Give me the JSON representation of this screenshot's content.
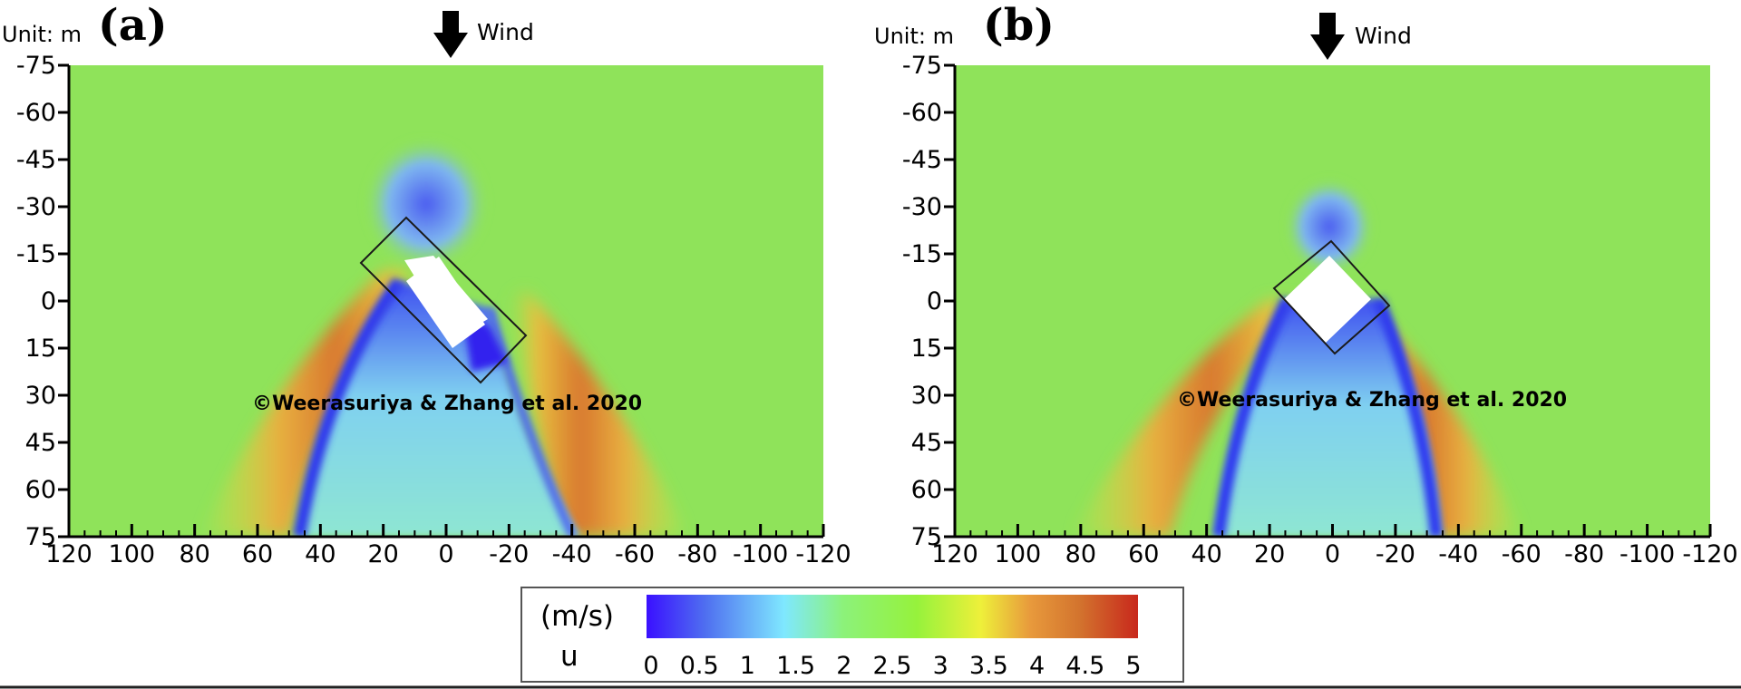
{
  "chart_data": {
    "type": "heatmap",
    "x_ticks": [
      "120",
      "100",
      "80",
      "60",
      "40",
      "20",
      "0",
      "-20",
      "-40",
      "-60",
      "-80",
      "-100",
      "-120"
    ],
    "y_ticks": [
      "-75",
      "-60",
      "-45",
      "-30",
      "-15",
      "0",
      "15",
      "30",
      "45",
      "60",
      "75"
    ],
    "xlim": [
      120,
      -120
    ],
    "ylim": [
      -75,
      75
    ],
    "panels": [
      {
        "label": "(a)",
        "unit_text": "Unit: m",
        "wind_text": "Wind",
        "copyright": "©Weerasuriya & Zhang et al. 2020",
        "building_angle_deg": 45,
        "building_center": [
          -5,
          5
        ]
      },
      {
        "label": "(b)",
        "unit_text": "Unit: m",
        "wind_text": "Wind",
        "copyright": "©Weerasuriya & Zhang et al. 2020",
        "building_angle_deg": 45,
        "building_center": [
          0,
          0
        ]
      }
    ],
    "colorbar": {
      "unit": "(m/s)",
      "variable": "u",
      "ticks": [
        "0",
        "0.5",
        "1",
        "1.5",
        "2",
        "2.5",
        "3",
        "3.5",
        "4",
        "4.5",
        "5"
      ],
      "range": [
        0,
        5
      ],
      "colors": [
        "#3a10ff",
        "#4f6ff0",
        "#7fe8ff",
        "#8cf27a",
        "#96f23c",
        "#eef03a",
        "#e89a3c",
        "#d3742e",
        "#c8281c"
      ]
    },
    "field_colors": {
      "background": "#8fe35a",
      "low": "#3a2cf2",
      "mid_low": "#8fd9e8",
      "high": "#f2c23a",
      "highest": "#d77a2c"
    }
  }
}
